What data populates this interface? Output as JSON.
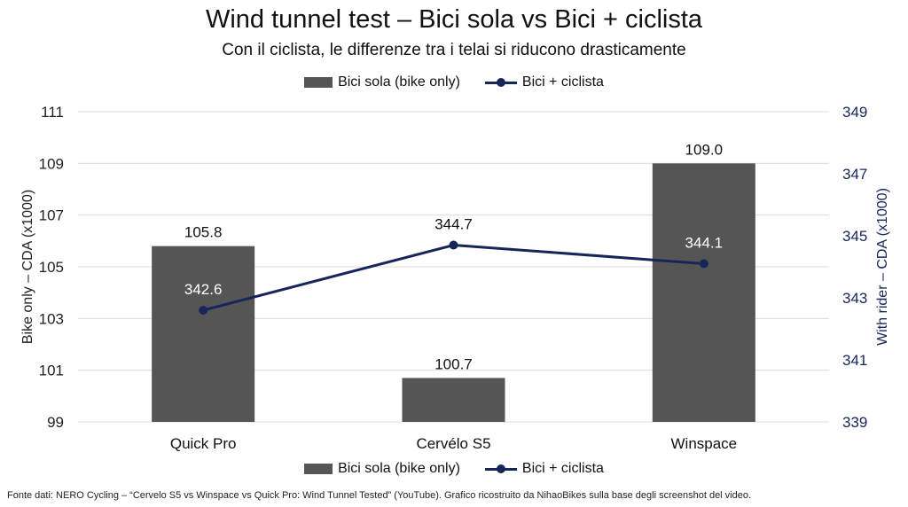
{
  "title": "Wind tunnel test – Bici sola vs Bici + ciclista",
  "subtitle": "Con il ciclista, le differenze tra i telai si riducono drasticamente",
  "source": "Fonte dati: NERO Cycling – “Cervelo S5 vs Winspace vs Quick Pro: Wind Tunnel Tested” (YouTube). Grafico ricostruito da NihaoBikes sulla base degli screenshot del video.",
  "colors": {
    "bar": "#555555",
    "line": "#16265a",
    "grid": "#dcdcdc",
    "right_axis_text": "#16265a"
  },
  "chart_data": {
    "type": "bar",
    "title": "Wind tunnel test – Bici sola vs Bici + ciclista",
    "subtitle": "Con il ciclista, le differenze tra i telai si riducono drasticamente",
    "categories": [
      "Quick Pro",
      "Cervélo S5",
      "Winspace"
    ],
    "series": [
      {
        "name": "Bici sola (bike only)",
        "type": "bar",
        "axis": "left",
        "values": [
          105.8,
          100.7,
          109.0
        ],
        "labels": [
          "105.8",
          "100.7",
          "109.0"
        ]
      },
      {
        "name": "Bici + ciclista",
        "type": "line",
        "axis": "right",
        "values": [
          342.6,
          344.7,
          344.1
        ],
        "labels": [
          "342.6",
          "344.7",
          "344.1"
        ]
      }
    ],
    "ylabel_left": "Bike only – CDA (x1000)",
    "ylabel_right": "With rider – CDA (x1000)",
    "ylim_left": [
      99,
      111
    ],
    "ylim_right": [
      339,
      349
    ],
    "yticks_left": [
      "99",
      "101",
      "103",
      "105",
      "107",
      "109",
      "111"
    ],
    "yticks_right": [
      "339",
      "341",
      "343",
      "345",
      "347",
      "349"
    ],
    "grid": true,
    "legend_position": "top and bottom"
  }
}
